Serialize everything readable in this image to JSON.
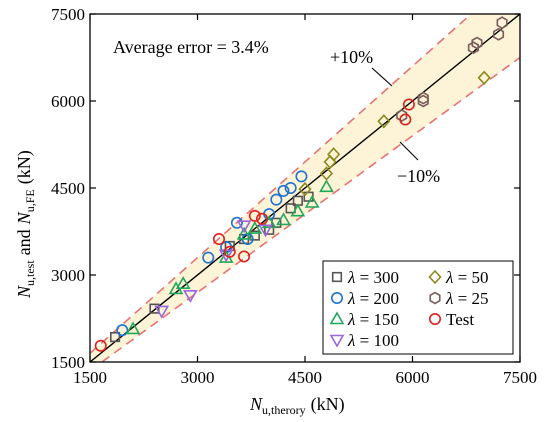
{
  "chart_data": {
    "type": "scatter",
    "x_label": {
      "main": "N",
      "sub": "u,therory",
      "unit": "(kN)"
    },
    "y_label": {
      "main1": "N",
      "sub1": "u,test",
      "mid": "and",
      "main2": "N",
      "sub2": "u,FE",
      "unit": "(kN)"
    },
    "xlim": [
      1500,
      7500
    ],
    "ylim": [
      1500,
      7500
    ],
    "x_ticks": [
      "1500",
      "3000",
      "4500",
      "6000",
      "7500"
    ],
    "y_ticks": [
      "1500",
      "3000",
      "4500",
      "6000",
      "7500"
    ],
    "x_tick_values": [
      1500,
      3000,
      4500,
      6000,
      7500
    ],
    "y_tick_values": [
      1500,
      3000,
      4500,
      6000,
      7500
    ],
    "grid": false,
    "reference_line": {
      "slope": 1
    },
    "error_band": {
      "upper": 1.1,
      "lower": 0.9,
      "fill": "#fdf3d6",
      "stroke": "#e57373"
    },
    "annotations": {
      "average_error": "Average error = 3.4%",
      "plus": "+10%",
      "minus": "−10%"
    },
    "legend": {
      "position": "bottom-right",
      "columns": 2
    },
    "series": [
      {
        "name_prefix": "λ",
        "name_value": "= 300",
        "marker": "square",
        "color": "#555555",
        "points": [
          [
            1850,
            1930
          ],
          [
            2400,
            2420
          ],
          [
            3450,
            3500
          ],
          [
            3650,
            3620
          ],
          [
            3800,
            3680
          ],
          [
            4000,
            3780
          ],
          [
            4100,
            3900
          ],
          [
            4300,
            4150
          ],
          [
            4400,
            4280
          ],
          [
            4550,
            4350
          ]
        ]
      },
      {
        "name_prefix": "λ",
        "name_value": "= 200",
        "marker": "circle",
        "color": "#1e73d2",
        "points": [
          [
            1950,
            2050
          ],
          [
            3150,
            3300
          ],
          [
            3400,
            3480
          ],
          [
            3550,
            3900
          ],
          [
            3700,
            3620
          ],
          [
            4100,
            4300
          ],
          [
            4200,
            4450
          ],
          [
            4300,
            4500
          ],
          [
            4450,
            4700
          ],
          [
            4000,
            4050
          ]
        ]
      },
      {
        "name_prefix": "λ",
        "name_value": "= 150",
        "marker": "triangle",
        "color": "#22a85a",
        "points": [
          [
            2100,
            2070
          ],
          [
            2700,
            2760
          ],
          [
            2800,
            2850
          ],
          [
            3400,
            3300
          ],
          [
            3650,
            3700
          ],
          [
            3800,
            3800
          ],
          [
            4000,
            3900
          ],
          [
            4200,
            3950
          ],
          [
            4400,
            4100
          ],
          [
            4600,
            4250
          ],
          [
            4800,
            4520
          ]
        ]
      },
      {
        "name_prefix": "λ",
        "name_value": "= 100",
        "marker": "triangle-down",
        "color": "#9966dd",
        "points": [
          [
            2500,
            2380
          ],
          [
            2900,
            2650
          ],
          [
            3400,
            3350
          ],
          [
            3650,
            3850
          ],
          [
            3950,
            3780
          ]
        ]
      },
      {
        "name_prefix": "λ",
        "name_value": "= 50",
        "marker": "diamond",
        "color": "#8a8a1e",
        "points": [
          [
            4500,
            4480
          ],
          [
            4800,
            4750
          ],
          [
            4850,
            4950
          ],
          [
            4900,
            5080
          ],
          [
            5600,
            5650
          ],
          [
            7000,
            6400
          ]
        ]
      },
      {
        "name_prefix": "λ",
        "name_value": "= 25",
        "marker": "hexagon",
        "color": "#7a5c5c",
        "points": [
          [
            5850,
            5750
          ],
          [
            6150,
            6000
          ],
          [
            6150,
            6050
          ],
          [
            6850,
            6920
          ],
          [
            6900,
            7000
          ],
          [
            7200,
            7150
          ],
          [
            7250,
            7350
          ]
        ]
      },
      {
        "name_prefix": "",
        "name_value": "Test",
        "marker": "circle-red",
        "color": "#e02020",
        "points": [
          [
            1650,
            1780
          ],
          [
            3300,
            3620
          ],
          [
            3450,
            3400
          ],
          [
            3650,
            3320
          ],
          [
            3800,
            4020
          ],
          [
            3900,
            3970
          ],
          [
            5900,
            5680
          ],
          [
            5950,
            5940
          ]
        ]
      }
    ]
  }
}
